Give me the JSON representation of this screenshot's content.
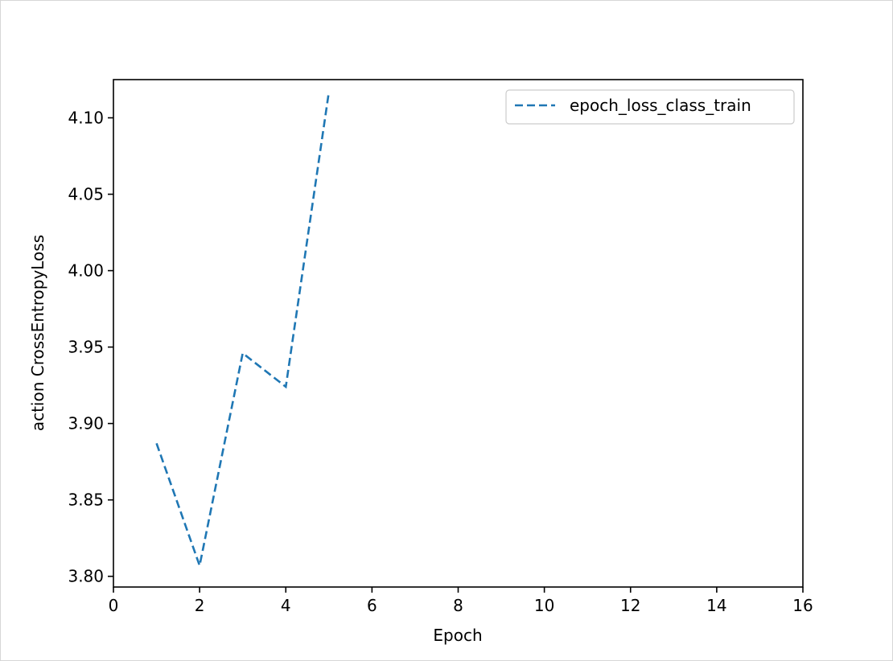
{
  "chart_data": {
    "type": "line",
    "xlabel": "Epoch",
    "ylabel": "action CrossEntropyLoss",
    "xlim": [
      0,
      16
    ],
    "ylim": [
      3.793,
      4.125
    ],
    "xticks": [
      0,
      2,
      4,
      6,
      8,
      10,
      12,
      14,
      16
    ],
    "xtick_labels": [
      "0",
      "2",
      "4",
      "6",
      "8",
      "10",
      "12",
      "14",
      "16"
    ],
    "yticks": [
      3.8,
      3.85,
      3.9,
      3.95,
      4.0,
      4.05,
      4.1
    ],
    "ytick_labels": [
      "3.80",
      "3.85",
      "3.90",
      "3.95",
      "4.00",
      "4.05",
      "4.10"
    ],
    "grid": false,
    "legend_position": "top-right",
    "series": [
      {
        "name": "epoch_loss_class_train",
        "color": "#1f77b4",
        "line_style": "dashed",
        "x": [
          1,
          2,
          3,
          4,
          5
        ],
        "y": [
          3.887,
          3.807,
          3.946,
          3.924,
          4.117
        ]
      }
    ]
  }
}
